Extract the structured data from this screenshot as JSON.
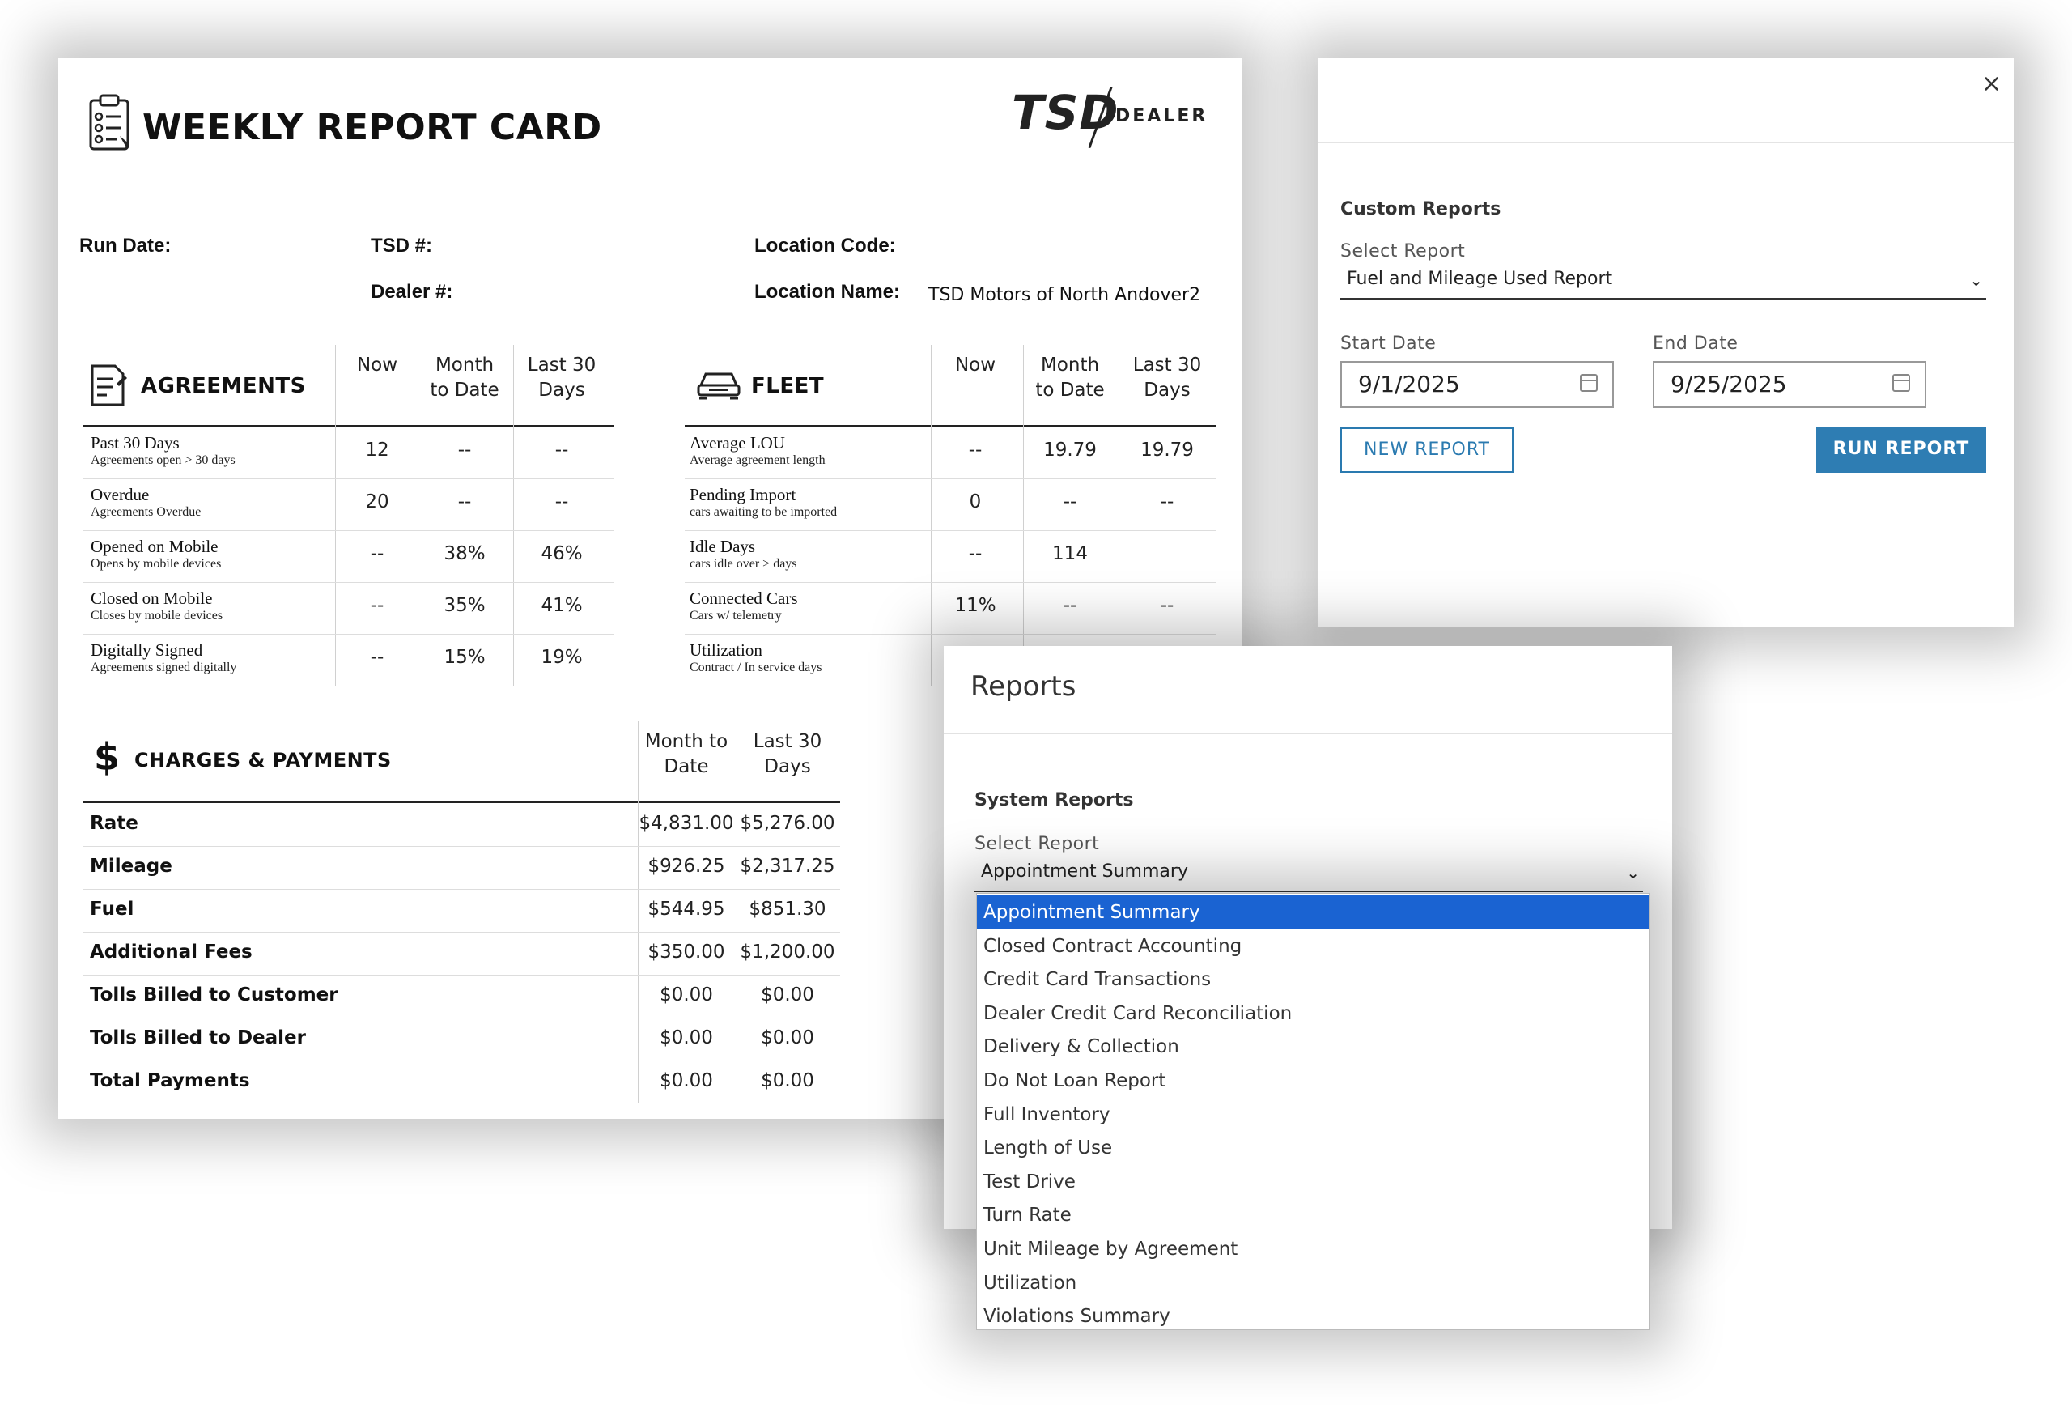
{
  "report_card": {
    "title": "WEEKLY REPORT CARD",
    "brand": {
      "name": "TSD",
      "sub": "DEALER"
    },
    "meta": {
      "run_date_label": "Run Date:",
      "tsd_label": "TSD #:",
      "dealer_label": "Dealer #:",
      "location_code_label": "Location Code:",
      "location_name_label": "Location Name:",
      "location_name_value": "TSD Motors of North Andover2"
    },
    "agreements": {
      "title": "AGREEMENTS",
      "headers": [
        "Now",
        "Month\nto Date",
        "Last 30\nDays"
      ],
      "rows": [
        {
          "label": "Past 30 Days",
          "sub": "Agreements open > 30 days",
          "values": [
            "12",
            "--",
            "--"
          ]
        },
        {
          "label": "Overdue",
          "sub": "Agreements Overdue",
          "values": [
            "20",
            "--",
            "--"
          ]
        },
        {
          "label": "Opened on Mobile",
          "sub": "Opens by mobile devices",
          "values": [
            "--",
            "38%",
            "46%"
          ]
        },
        {
          "label": "Closed on Mobile",
          "sub": "Closes by mobile devices",
          "values": [
            "--",
            "35%",
            "41%"
          ]
        },
        {
          "label": "Digitally Signed",
          "sub": "Agreements signed digitally",
          "values": [
            "--",
            "15%",
            "19%"
          ]
        }
      ]
    },
    "fleet": {
      "title": "FLEET",
      "headers": [
        "Now",
        "Month\nto Date",
        "Last 30\nDays"
      ],
      "rows": [
        {
          "label": "Average LOU",
          "sub": "Average agreement length",
          "values": [
            "--",
            "19.79",
            "19.79"
          ]
        },
        {
          "label": "Pending Import",
          "sub": "cars awaiting to be imported",
          "values": [
            "0",
            "--",
            "--"
          ]
        },
        {
          "label": "Idle Days",
          "sub": "cars idle over > days",
          "values": [
            "--",
            "114",
            ""
          ]
        },
        {
          "label": "Connected Cars",
          "sub": "Cars w/ telemetry",
          "values": [
            "11%",
            "--",
            "--"
          ]
        },
        {
          "label": "Utilization",
          "sub": "Contract / In service days",
          "values": [
            "",
            "",
            ""
          ]
        }
      ]
    },
    "charges": {
      "title": "CHARGES & PAYMENTS",
      "headers": [
        "Month to\nDate",
        "Last 30\nDays"
      ],
      "rows": [
        {
          "label": "Rate",
          "values": [
            "$4,831.00",
            "$5,276.00"
          ]
        },
        {
          "label": "Mileage",
          "values": [
            "$926.25",
            "$2,317.25"
          ]
        },
        {
          "label": "Fuel",
          "values": [
            "$544.95",
            "$851.30"
          ]
        },
        {
          "label": "Additional Fees",
          "values": [
            "$350.00",
            "$1,200.00"
          ]
        },
        {
          "label": "Tolls Billed to Customer",
          "values": [
            "$0.00",
            "$0.00"
          ]
        },
        {
          "label": "Tolls Billed to Dealer",
          "values": [
            "$0.00",
            "$0.00"
          ]
        },
        {
          "label": "Total Payments",
          "values": [
            "$0.00",
            "$0.00"
          ]
        }
      ]
    }
  },
  "custom_modal": {
    "close": "×",
    "section": "Custom Reports",
    "select_label": "Select Report",
    "select_value": "Fuel and Mileage Used Report",
    "start_label": "Start Date",
    "start_value": "9/1/2025",
    "end_label": "End Date",
    "end_value": "9/25/2025",
    "new_button": "NEW REPORT",
    "run_button": "RUN REPORT"
  },
  "system_modal": {
    "title": "Reports",
    "section": "System Reports",
    "select_label": "Select Report",
    "select_value": "Appointment Summary",
    "options": [
      "Appointment Summary",
      "Closed Contract Accounting",
      "Credit Card Transactions",
      "Dealer Credit Card Reconciliation",
      "Delivery & Collection",
      "Do Not Loan Report",
      "Full Inventory",
      "Length of Use",
      "Test Drive",
      "Turn Rate",
      "Unit Mileage by Agreement",
      "Utilization",
      "Violations Summary"
    ],
    "selected_index": 0,
    "colors": {
      "accent": "#2e7db3",
      "highlight": "#1a63d2"
    }
  }
}
